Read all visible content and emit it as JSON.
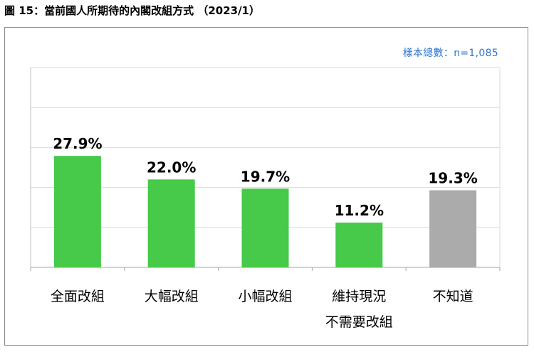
{
  "figure_title": "圖 15：當前國人所期待的內閣改組方式  （2023/1）",
  "sample_note": "樣本總數：n=1,085",
  "colors": {
    "main": "#47c94a",
    "unknown": "#ababab",
    "grid": "#d9d9d9",
    "note": "#2e75d0"
  },
  "chart_data": {
    "type": "bar",
    "title": "圖 15：當前國人所期待的內閣改組方式  （2023/1）",
    "categories": [
      "全面改組",
      "大幅改組",
      "小幅改組",
      "維持現況\n不需要改組",
      "不知道"
    ],
    "values": [
      27.9,
      22.0,
      19.7,
      11.2,
      19.3
    ],
    "value_labels": [
      "27.9%",
      "22.0%",
      "19.7%",
      "11.2%",
      "19.3%"
    ],
    "bar_colors": [
      "#47c94a",
      "#47c94a",
      "#47c94a",
      "#47c94a",
      "#ababab"
    ],
    "ylim": [
      0,
      50
    ],
    "grid": true,
    "xlabel": "",
    "ylabel": ""
  }
}
